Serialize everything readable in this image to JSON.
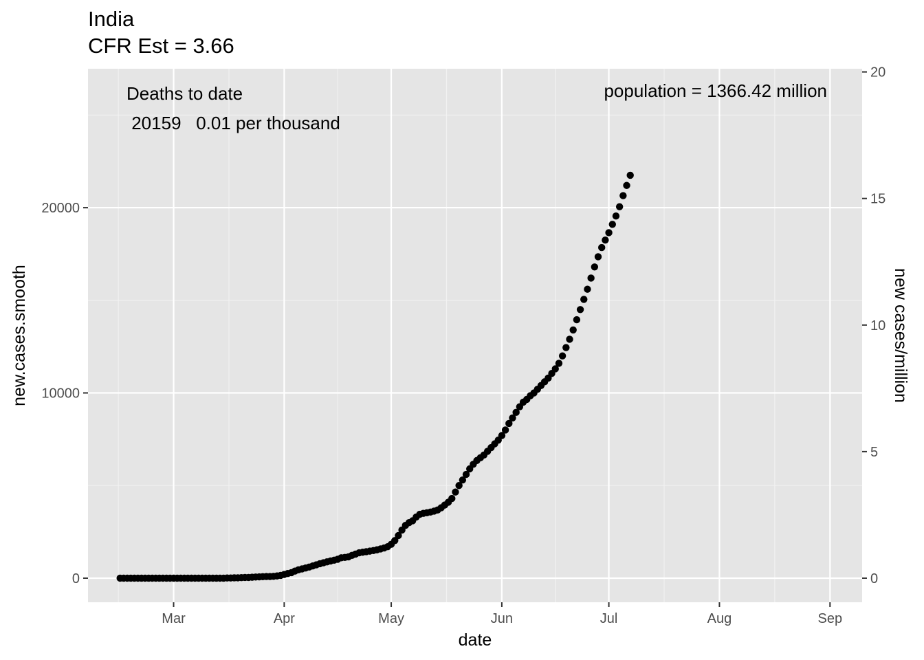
{
  "chart_data": {
    "type": "scatter",
    "title": "India",
    "subtitle": "CFR Est = 3.66",
    "xlabel": "date",
    "ylabel": "new.cases.smooth",
    "y2label": "new cases/million",
    "annotations": {
      "deaths_heading": "Deaths to date",
      "deaths_value": " 20159   0.01 per thousand",
      "population": "population = 1366.42 million"
    },
    "x_start": "2020-02-15",
    "x_tick_labels": [
      "Mar",
      "Apr",
      "May",
      "Jun",
      "Jul",
      "Aug",
      "Sep"
    ],
    "x_tick_dates": [
      "2020-03-01",
      "2020-04-01",
      "2020-05-01",
      "2020-06-01",
      "2020-07-01",
      "2020-08-01",
      "2020-09-01"
    ],
    "xlim": [
      "2020-02-06",
      "2020-09-10"
    ],
    "y_ticks": [
      0,
      10000,
      20000
    ],
    "ylim": [
      -1300,
      27500
    ],
    "y2_ticks": [
      0,
      5,
      10,
      15,
      20
    ],
    "grid": true,
    "background": "#e5e5e5",
    "gridline_color": "#ffffff",
    "point_color": "#000000",
    "series": [
      {
        "values": [
          0,
          0,
          0,
          0,
          0,
          0,
          0,
          0,
          0,
          0,
          0,
          0,
          0,
          0,
          0,
          0,
          0,
          0,
          0,
          0,
          0,
          0,
          0,
          0,
          0,
          0,
          0,
          0,
          0,
          0,
          10,
          10,
          20,
          20,
          30,
          40,
          40,
          50,
          60,
          70,
          80,
          90,
          90,
          100,
          120,
          150,
          200,
          250,
          300,
          380,
          450,
          500,
          550,
          600,
          660,
          720,
          780,
          830,
          880,
          930,
          970,
          1020,
          1100,
          1120,
          1150,
          1230,
          1300,
          1370,
          1400,
          1430,
          1460,
          1490,
          1530,
          1580,
          1630,
          1700,
          1830,
          2030,
          2300,
          2600,
          2850,
          3000,
          3100,
          3300,
          3450,
          3500,
          3530,
          3570,
          3620,
          3680,
          3800,
          3950,
          4100,
          4300,
          4650,
          5000,
          5300,
          5600,
          5900,
          6150,
          6350,
          6500,
          6650,
          6850,
          7050,
          7250,
          7450,
          7700,
          8000,
          8350,
          8650,
          8950,
          9250,
          9500,
          9650,
          9850,
          10000,
          10200,
          10400,
          10600,
          10800,
          11050,
          11300,
          11600,
          12000,
          12450,
          12900,
          13400,
          13950,
          14500,
          15050,
          15600,
          16200,
          16800,
          17350,
          17850,
          18250,
          18650,
          19100,
          19550,
          20050,
          20650,
          21200,
          21750
        ]
      }
    ]
  }
}
